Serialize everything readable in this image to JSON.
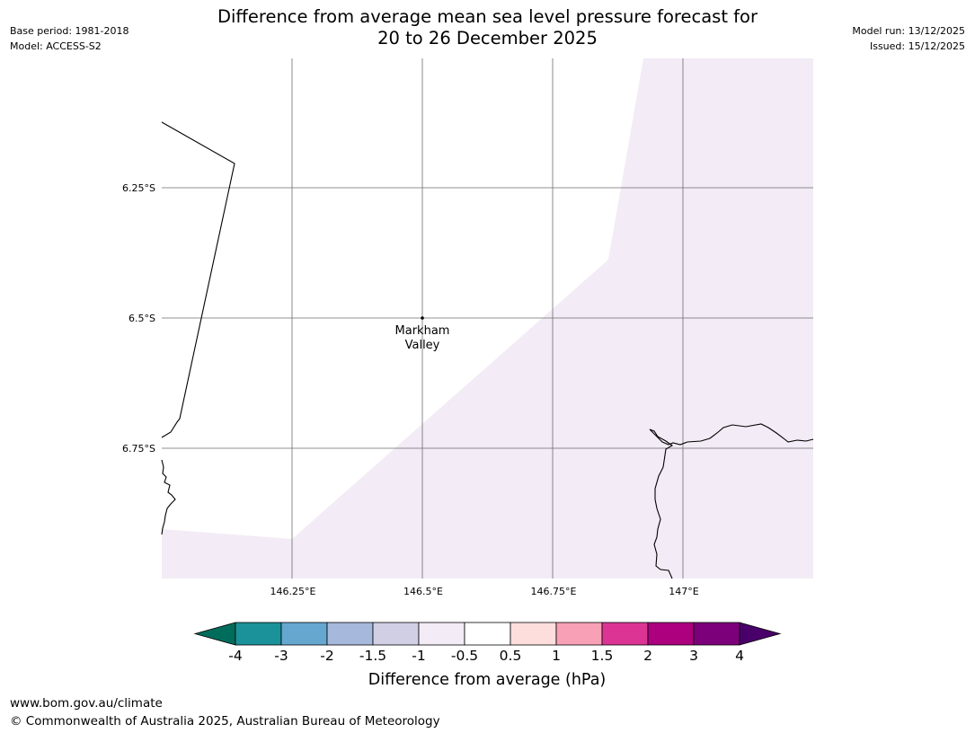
{
  "header": {
    "title_line1": "Difference from average mean sea level pressure forecast for",
    "title_line2": "20 to 26 December 2025",
    "base_period": "Base period: 1981-2018",
    "model": "Model: ACCESS-S2",
    "model_run": "Model run: 13/12/2025",
    "issued": "Issued: 15/12/2025"
  },
  "map": {
    "lat_ticks": [
      "6.25°S",
      "6.5°S",
      "6.75°S"
    ],
    "lon_ticks": [
      "146.25°E",
      "146.5°E",
      "146.75°E",
      "147°E"
    ],
    "location": {
      "name_line1": "Markham",
      "name_line2": "Valley"
    },
    "shaded_category": "-0.5 to -1",
    "shade_color": "#f3ebf5"
  },
  "colorbar": {
    "title": "Difference from average (hPa)",
    "labels": [
      "-4",
      "-3",
      "-2",
      "-1.5",
      "-1",
      "-0.5",
      "0.5",
      "1",
      "1.5",
      "2",
      "3",
      "4"
    ],
    "colors": [
      "#1b9199",
      "#66a7d0",
      "#a6b8db",
      "#d0cfe4",
      "#f3ebf5",
      "#ffffff",
      "#fddedd",
      "#f8a0b5",
      "#dc3494",
      "#ac007e",
      "#7c0079"
    ],
    "under_color": "#006c5c",
    "over_color": "#4a006a"
  },
  "footer": {
    "url": "www.bom.gov.au/climate",
    "copyright": "© Commonwealth of Australia 2025, Australian Bureau of Meteorology"
  }
}
